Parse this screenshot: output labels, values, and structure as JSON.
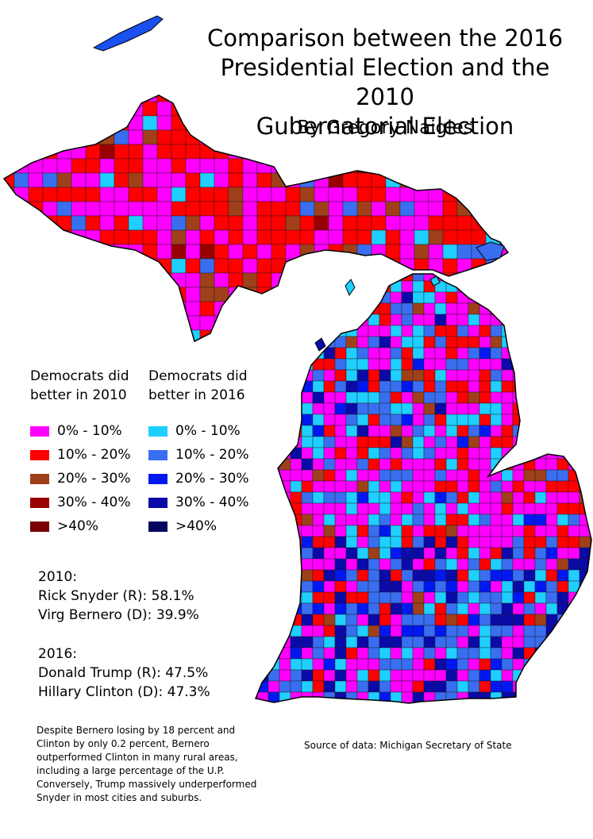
{
  "title": [
    "Comparison between the 2016",
    "Presidential Election and the 2010",
    "Gubernatorial Election"
  ],
  "byline": "By Gregory Naigles",
  "legend": {
    "left": {
      "heading": [
        "Democrats did",
        "better in 2010"
      ],
      "items": [
        {
          "label": "0% - 10%",
          "color": "#ff00ff"
        },
        {
          "label": "10% - 20%",
          "color": "#ff0000"
        },
        {
          "label": "20% - 30%",
          "color": "#a0401a"
        },
        {
          "label": "30% - 40%",
          "color": "#990000"
        },
        {
          "label": ">40%",
          "color": "#7a0000"
        }
      ]
    },
    "right": {
      "heading": [
        "Democrats did",
        "better in 2016"
      ],
      "items": [
        {
          "label": "0% - 10%",
          "color": "#1ecfff"
        },
        {
          "label": "10% - 20%",
          "color": "#3a6ef0"
        },
        {
          "label": "20% - 30%",
          "color": "#0018f0"
        },
        {
          "label": "30% - 40%",
          "color": "#0a0aa8"
        },
        {
          "label": ">40%",
          "color": "#050560"
        }
      ]
    }
  },
  "results": {
    "y2010": {
      "heading": "2010:",
      "lines": [
        "Rick Snyder (R): 58.1%",
        "Virg Bernero (D): 39.9%"
      ]
    },
    "y2016": {
      "heading": "2016:",
      "lines": [
        "Donald Trump (R): 47.5%",
        "Hillary Clinton (D): 47.3%"
      ]
    }
  },
  "note": [
    "Despite Bernero losing by 18 percent and",
    "Clinton by only 0.2 percent, Bernero",
    "outperformed Clinton in many rural areas,",
    "including a large percentage of the U.P.",
    "Conversely, Trump massively underperformed",
    "Snyder in most cities and suburbs."
  ],
  "source": "Source of data: Michigan Secretary of State",
  "colors": {
    "border": "#000000",
    "water": "#ffffff"
  }
}
